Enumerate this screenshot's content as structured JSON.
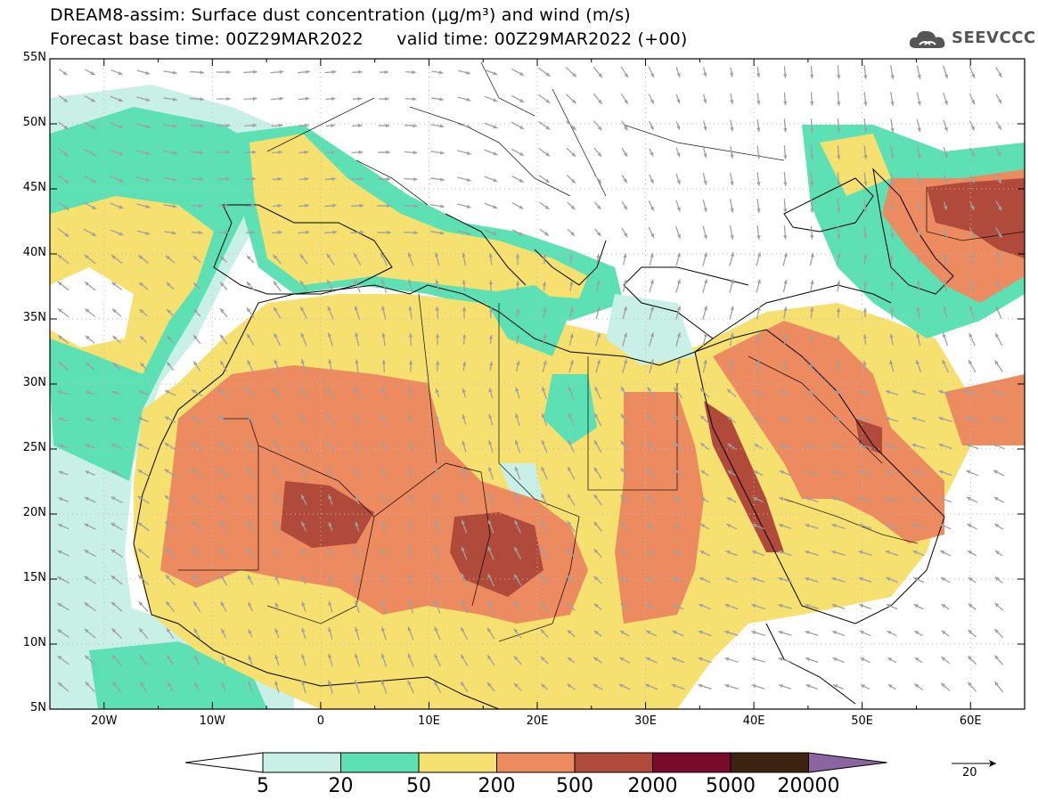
{
  "title": {
    "line1": "DREAM8-assim: Surface dust concentration (μg/m³) and wind (m/s)",
    "line2": "Forecast base time: 00Z29MAR2022      valid time: 00Z29MAR2022 (+00)"
  },
  "logo": {
    "text": "SEEVCCC",
    "icon": "cloud-icon"
  },
  "latitude_labels": [
    "55N",
    "50N",
    "45N",
    "40N",
    "35N",
    "30N",
    "25N",
    "20N",
    "15N",
    "10N",
    "5N"
  ],
  "longitude_labels": [
    "20W",
    "10W",
    "0",
    "10E",
    "20E",
    "30E",
    "40E",
    "50E",
    "60E"
  ],
  "extent": {
    "lon_min": -25,
    "lon_max": 65,
    "lat_min": 5,
    "lat_max": 55
  },
  "colorbar": {
    "labels": [
      "5",
      "20",
      "50",
      "200",
      "500",
      "2000",
      "5000",
      "20000"
    ],
    "colors": [
      "#ffffff",
      "#c8f0e6",
      "#5ce0b4",
      "#f5e070",
      "#ec8a60",
      "#b04a3a",
      "#7a0a2a",
      "#3c2410",
      "#8c64a0"
    ]
  },
  "wind_scale": {
    "label": "20"
  },
  "colors": {
    "vector": "#a0a0a0",
    "grid": "#bbbbbb",
    "coast": "#000000"
  }
}
